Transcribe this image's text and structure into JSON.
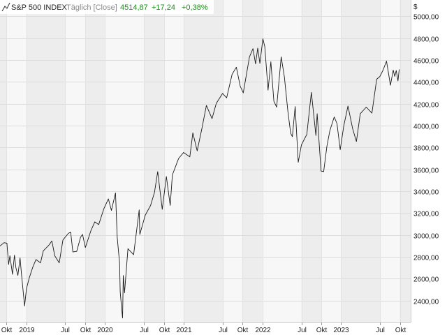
{
  "header": {
    "icon": "line-chart-icon",
    "instrument": "S&P 500 INDEX",
    "interval": "Täglich [Close]",
    "last_value": "4514,87",
    "change_abs": "+17,24",
    "change_pct": "+0,38%",
    "change_color": "#1a8f1a"
  },
  "chart_data": {
    "type": "line",
    "x_unit": "date",
    "currency_label": "$",
    "ylim": [
      2200,
      5150
    ],
    "yticks": [
      2400,
      2600,
      2800,
      3000,
      3200,
      3400,
      3600,
      3800,
      4000,
      4200,
      4400,
      4600,
      4800,
      5000
    ],
    "ytick_labels": [
      "2400,00",
      "2600,00",
      "2800,00",
      "3000,00",
      "3200,00",
      "3400,00",
      "3600,00",
      "3800,00",
      "4000,00",
      "4200,00",
      "4400,00",
      "4600,00",
      "4800,00",
      "5000,00"
    ],
    "xlim": [
      "2018-09-01",
      "2023-11-20"
    ],
    "xticks": [
      {
        "date": "2018-10-01",
        "label": "Okt"
      },
      {
        "date": "2019-01-01",
        "label": "2019"
      },
      {
        "date": "2019-07-01",
        "label": "Jul"
      },
      {
        "date": "2019-10-01",
        "label": "Okt"
      },
      {
        "date": "2020-01-01",
        "label": "2020"
      },
      {
        "date": "2020-07-01",
        "label": "Jul"
      },
      {
        "date": "2020-10-01",
        "label": "Okt"
      },
      {
        "date": "2021-01-01",
        "label": "2021"
      },
      {
        "date": "2021-07-01",
        "label": "Jul"
      },
      {
        "date": "2021-10-01",
        "label": "Okt"
      },
      {
        "date": "2022-01-01",
        "label": "2022"
      },
      {
        "date": "2022-07-01",
        "label": "Jul"
      },
      {
        "date": "2022-10-01",
        "label": "Okt"
      },
      {
        "date": "2023-01-01",
        "label": "2023"
      },
      {
        "date": "2023-07-01",
        "label": "Jul"
      },
      {
        "date": "2023-10-01",
        "label": "Okt"
      }
    ],
    "grid": true,
    "line_color": "#1a1a1a",
    "series": [
      {
        "points": [
          [
            "2018-09-01",
            2900
          ],
          [
            "2018-09-20",
            2930
          ],
          [
            "2018-10-03",
            2925
          ],
          [
            "2018-10-11",
            2730
          ],
          [
            "2018-10-17",
            2810
          ],
          [
            "2018-10-29",
            2640
          ],
          [
            "2018-11-07",
            2815
          ],
          [
            "2018-11-14",
            2700
          ],
          [
            "2018-11-23",
            2630
          ],
          [
            "2018-12-03",
            2790
          ],
          [
            "2018-12-10",
            2640
          ],
          [
            "2018-12-24",
            2350
          ],
          [
            "2019-01-02",
            2510
          ],
          [
            "2019-01-15",
            2610
          ],
          [
            "2019-01-31",
            2705
          ],
          [
            "2019-02-15",
            2775
          ],
          [
            "2019-03-08",
            2745
          ],
          [
            "2019-03-21",
            2855
          ],
          [
            "2019-04-15",
            2905
          ],
          [
            "2019-04-30",
            2945
          ],
          [
            "2019-05-13",
            2810
          ],
          [
            "2019-06-03",
            2745
          ],
          [
            "2019-06-20",
            2955
          ],
          [
            "2019-07-15",
            3015
          ],
          [
            "2019-07-26",
            3025
          ],
          [
            "2019-08-05",
            2845
          ],
          [
            "2019-08-23",
            2850
          ],
          [
            "2019-09-10",
            2980
          ],
          [
            "2019-09-19",
            3005
          ],
          [
            "2019-10-02",
            2885
          ],
          [
            "2019-10-28",
            3040
          ],
          [
            "2019-11-15",
            3120
          ],
          [
            "2019-12-03",
            3095
          ],
          [
            "2019-12-27",
            3240
          ],
          [
            "2020-01-17",
            3330
          ],
          [
            "2020-01-31",
            3225
          ],
          [
            "2020-02-19",
            3385
          ],
          [
            "2020-02-27",
            2980
          ],
          [
            "2020-03-09",
            2745
          ],
          [
            "2020-03-12",
            2480
          ],
          [
            "2020-03-16",
            2385
          ],
          [
            "2020-03-23",
            2240
          ],
          [
            "2020-03-26",
            2630
          ],
          [
            "2020-04-01",
            2470
          ],
          [
            "2020-04-17",
            2875
          ],
          [
            "2020-05-13",
            2820
          ],
          [
            "2020-06-08",
            3230
          ],
          [
            "2020-06-11",
            3005
          ],
          [
            "2020-07-06",
            3180
          ],
          [
            "2020-07-31",
            3270
          ],
          [
            "2020-08-18",
            3390
          ],
          [
            "2020-09-02",
            3580
          ],
          [
            "2020-09-23",
            3235
          ],
          [
            "2020-10-12",
            3535
          ],
          [
            "2020-10-30",
            3270
          ],
          [
            "2020-11-09",
            3550
          ],
          [
            "2020-12-08",
            3700
          ],
          [
            "2020-12-31",
            3755
          ],
          [
            "2021-01-29",
            3715
          ],
          [
            "2021-02-12",
            3935
          ],
          [
            "2021-03-04",
            3770
          ],
          [
            "2021-03-26",
            3975
          ],
          [
            "2021-04-16",
            4185
          ],
          [
            "2021-05-12",
            4065
          ],
          [
            "2021-06-01",
            4205
          ],
          [
            "2021-06-30",
            4295
          ],
          [
            "2021-07-19",
            4255
          ],
          [
            "2021-08-13",
            4470
          ],
          [
            "2021-09-02",
            4535
          ],
          [
            "2021-09-20",
            4360
          ],
          [
            "2021-10-04",
            4300
          ],
          [
            "2021-11-02",
            4630
          ],
          [
            "2021-11-18",
            4705
          ],
          [
            "2021-11-30",
            4565
          ],
          [
            "2021-12-10",
            4710
          ],
          [
            "2021-12-20",
            4570
          ],
          [
            "2022-01-03",
            4795
          ],
          [
            "2022-01-12",
            4725
          ],
          [
            "2022-01-27",
            4325
          ],
          [
            "2022-02-09",
            4585
          ],
          [
            "2022-02-23",
            4225
          ],
          [
            "2022-03-08",
            4170
          ],
          [
            "2022-03-29",
            4630
          ],
          [
            "2022-04-13",
            4445
          ],
          [
            "2022-04-29",
            4130
          ],
          [
            "2022-05-12",
            3930
          ],
          [
            "2022-05-20",
            3900
          ],
          [
            "2022-06-02",
            4175
          ],
          [
            "2022-06-16",
            3665
          ],
          [
            "2022-07-01",
            3825
          ],
          [
            "2022-07-26",
            3920
          ],
          [
            "2022-08-16",
            4305
          ],
          [
            "2022-09-06",
            3910
          ],
          [
            "2022-09-12",
            4110
          ],
          [
            "2022-09-30",
            3585
          ],
          [
            "2022-10-12",
            3580
          ],
          [
            "2022-10-27",
            3810
          ],
          [
            "2022-11-10",
            3955
          ],
          [
            "2022-11-30",
            4080
          ],
          [
            "2022-12-13",
            4020
          ],
          [
            "2022-12-28",
            3780
          ],
          [
            "2023-01-13",
            3995
          ],
          [
            "2023-02-02",
            4180
          ],
          [
            "2023-02-24",
            3970
          ],
          [
            "2023-03-13",
            3855
          ],
          [
            "2023-03-31",
            4110
          ],
          [
            "2023-04-28",
            4170
          ],
          [
            "2023-05-24",
            4115
          ],
          [
            "2023-06-15",
            4425
          ],
          [
            "2023-06-30",
            4450
          ],
          [
            "2023-07-14",
            4505
          ],
          [
            "2023-07-31",
            4590
          ],
          [
            "2023-08-10",
            4470
          ],
          [
            "2023-08-18",
            4370
          ],
          [
            "2023-08-31",
            4508
          ],
          [
            "2023-09-07",
            4451
          ],
          [
            "2023-09-14",
            4505
          ],
          [
            "2023-09-22",
            4410
          ],
          [
            "2023-09-28",
            4515
          ]
        ]
      }
    ]
  }
}
